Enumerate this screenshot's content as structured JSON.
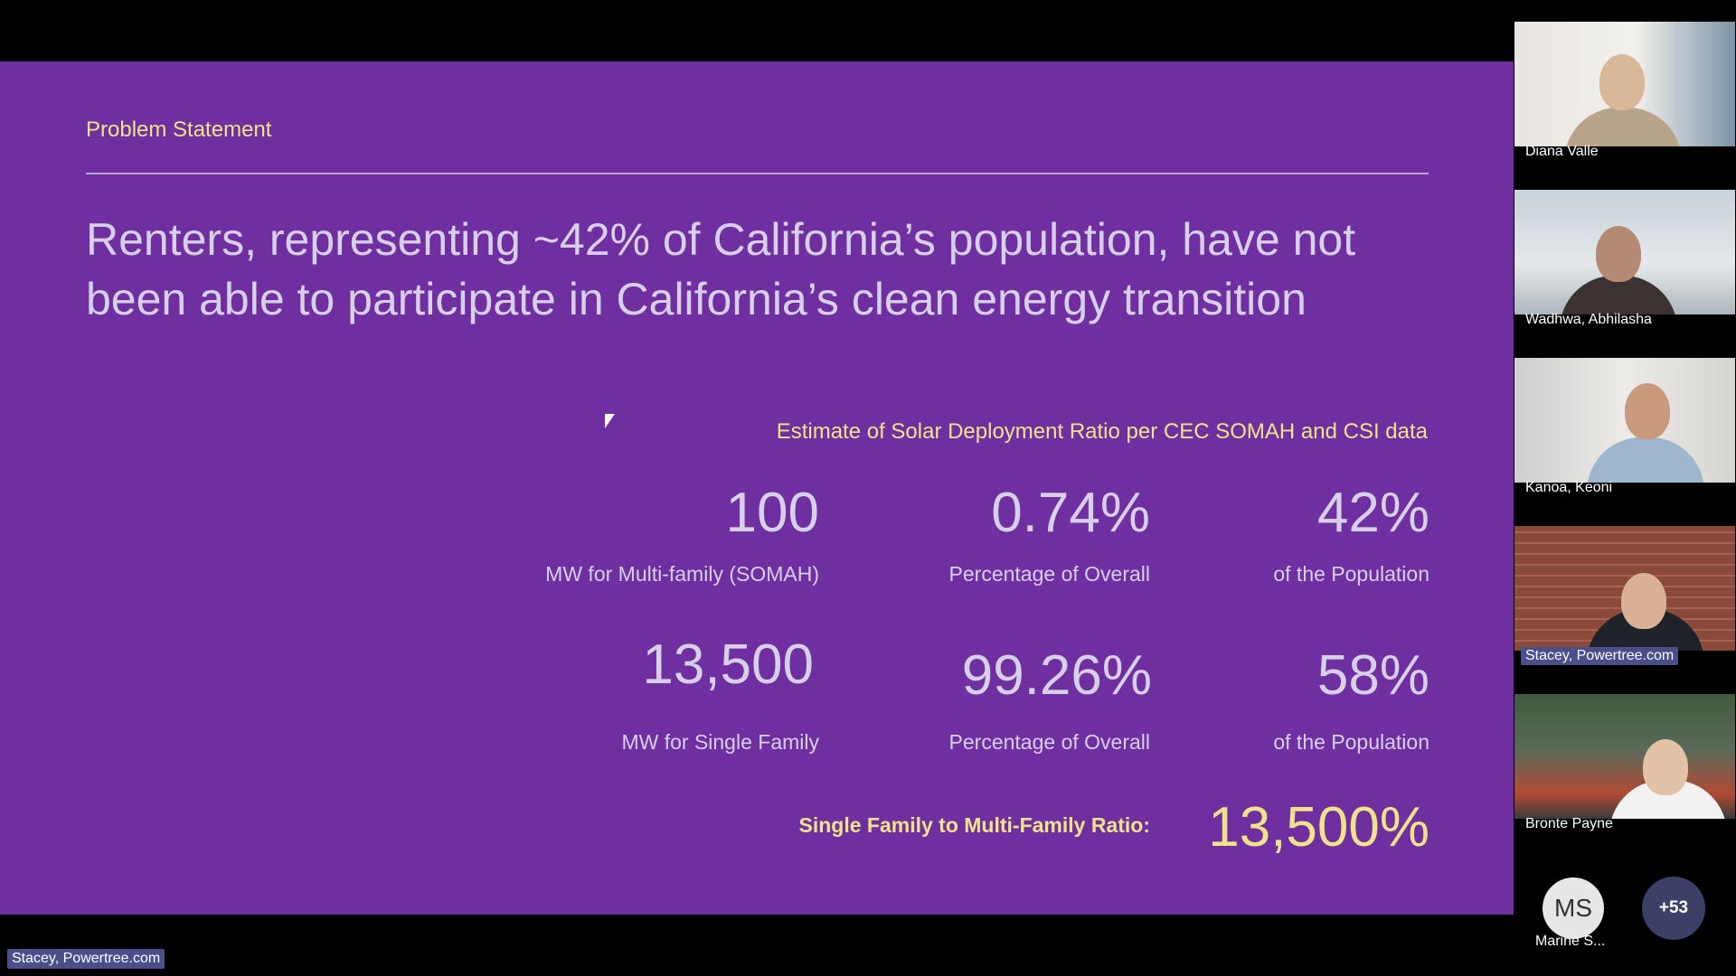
{
  "slide": {
    "section_title": "Problem Statement",
    "headline": "Renters, representing ~42% of California’s population, have not been able to participate in California’s clean energy transition",
    "subheading": "Estimate of Solar Deployment Ratio per CEC SOMAH and CSI data",
    "rows": [
      {
        "mw_value": "100",
        "mw_label": "MW for Multi-family (SOMAH)",
        "pct_value": "0.74%",
        "pct_label": "Percentage of Overall",
        "pop_value": "42%",
        "pop_label": "of the Population"
      },
      {
        "mw_value": "13,500",
        "mw_label": "MW for Single Family",
        "pct_value": "99.26%",
        "pct_label": "Percentage of Overall",
        "pop_value": "58%",
        "pop_label": "of the Population"
      }
    ],
    "ratio_label": "Single Family to Multi-Family Ratio:",
    "ratio_value": "13,500%"
  },
  "presenter_label": "Stacey, Powertree.com",
  "participants": [
    {
      "name": "Diana Valle",
      "active": false
    },
    {
      "name": "Wadhwa, Abhilasha",
      "active": false
    },
    {
      "name": "Kanoa, Keoni",
      "active": false
    },
    {
      "name": "Stacey, Powertree.com",
      "active": true
    },
    {
      "name": "Bronte Payne",
      "active": false
    }
  ],
  "avatar": {
    "initials": "MS",
    "name": "Marine S..."
  },
  "more_participants": "+53",
  "colors": {
    "slide_bg": "#6f2fa0",
    "accent_yellow": "#f0e38a",
    "text_light": "#d8cfe8",
    "active_tag": "#4a4f8a"
  }
}
